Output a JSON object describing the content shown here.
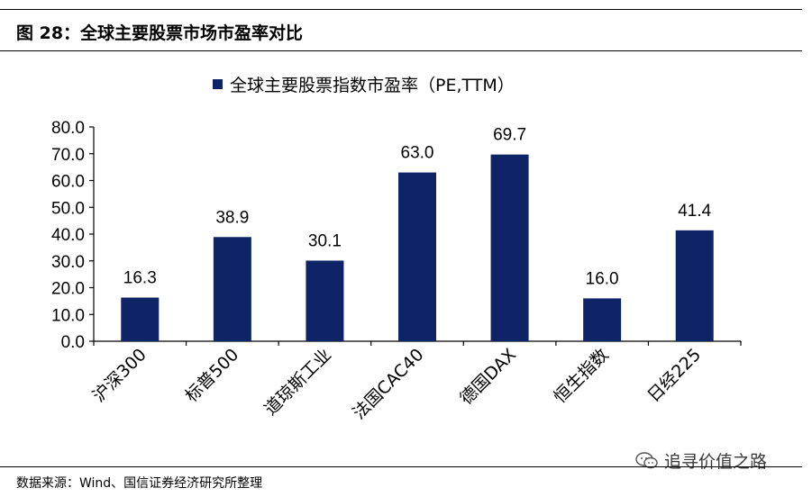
{
  "figure": {
    "title": "图 28：全球主要股票市场市盈率对比",
    "source": "数据来源：Wind、国信证券经济研究所整理",
    "watermark": "追寻价值之路",
    "watermark_icon": "wechat-icon"
  },
  "colors": {
    "bar": "#0f2466",
    "axis": "#000000"
  },
  "chart_data": {
    "type": "bar",
    "categories": [
      "沪深300",
      "标普500",
      "道琼斯工业",
      "法国CAC40",
      "德国DAX",
      "恒生指数",
      "日经225"
    ],
    "series": [
      {
        "name": "全球主要股票指数市盈率（PE,TTM）",
        "values": [
          16.3,
          38.9,
          30.1,
          63.0,
          69.7,
          16.0,
          41.4
        ]
      }
    ],
    "value_labels": [
      "16.3",
      "38.9",
      "30.1",
      "63.0",
      "69.7",
      "16.0",
      "41.4"
    ],
    "ylim": [
      0,
      80
    ],
    "yticks": [
      "0.0",
      "10.0",
      "20.0",
      "30.0",
      "40.0",
      "50.0",
      "60.0",
      "70.0",
      "80.0"
    ],
    "xlabel": "",
    "ylabel": "",
    "grid": false,
    "legend_position": "top"
  }
}
